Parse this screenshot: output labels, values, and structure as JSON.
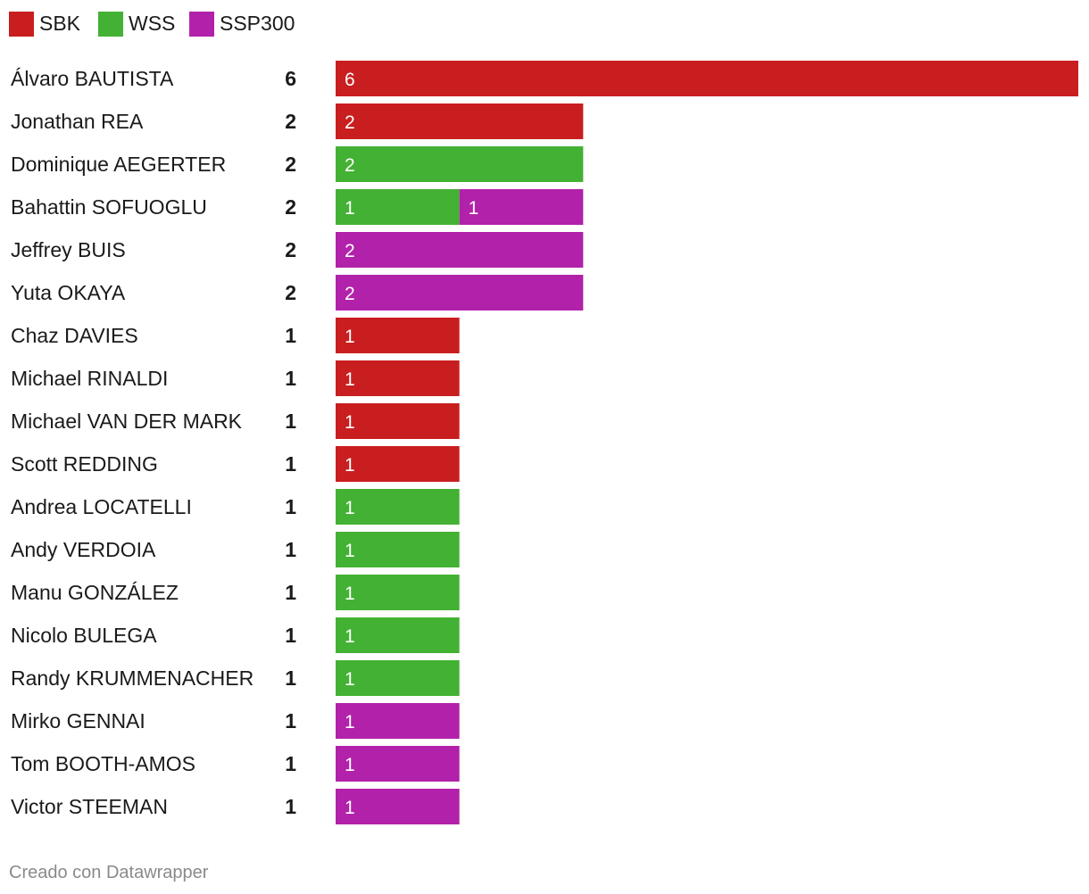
{
  "chart_data": {
    "type": "bar",
    "orientation": "horizontal",
    "stacked": true,
    "legend_position": "top-left",
    "grid": false,
    "series": [
      {
        "name": "SBK",
        "color": "#c91e1f"
      },
      {
        "name": "WSS",
        "color": "#43b133"
      },
      {
        "name": "SSP300",
        "color": "#b221a9"
      }
    ],
    "rows": [
      {
        "name": "Álvaro BAUTISTA",
        "total": 6,
        "values": [
          6,
          0,
          0
        ]
      },
      {
        "name": "Jonathan REA",
        "total": 2,
        "values": [
          2,
          0,
          0
        ]
      },
      {
        "name": "Dominique AEGERTER",
        "total": 2,
        "values": [
          0,
          2,
          0
        ]
      },
      {
        "name": "Bahattin SOFUOGLU",
        "total": 2,
        "values": [
          0,
          1,
          1
        ]
      },
      {
        "name": "Jeffrey BUIS",
        "total": 2,
        "values": [
          0,
          0,
          2
        ]
      },
      {
        "name": "Yuta OKAYA",
        "total": 2,
        "values": [
          0,
          0,
          2
        ]
      },
      {
        "name": "Chaz DAVIES",
        "total": 1,
        "values": [
          1,
          0,
          0
        ]
      },
      {
        "name": "Michael RINALDI",
        "total": 1,
        "values": [
          1,
          0,
          0
        ]
      },
      {
        "name": "Michael VAN DER MARK",
        "total": 1,
        "values": [
          1,
          0,
          0
        ]
      },
      {
        "name": "Scott REDDING",
        "total": 1,
        "values": [
          1,
          0,
          0
        ]
      },
      {
        "name": "Andrea LOCATELLI",
        "total": 1,
        "values": [
          0,
          1,
          0
        ]
      },
      {
        "name": "Andy VERDOIA",
        "total": 1,
        "values": [
          0,
          1,
          0
        ]
      },
      {
        "name": "Manu GONZÁLEZ",
        "total": 1,
        "values": [
          0,
          1,
          0
        ]
      },
      {
        "name": "Nicolo BULEGA",
        "total": 1,
        "values": [
          0,
          1,
          0
        ]
      },
      {
        "name": "Randy KRUMMENACHER",
        "total": 1,
        "values": [
          0,
          1,
          0
        ]
      },
      {
        "name": "Mirko GENNAI",
        "total": 1,
        "values": [
          0,
          0,
          1
        ]
      },
      {
        "name": "Tom BOOTH-AMOS",
        "total": 1,
        "values": [
          0,
          0,
          1
        ]
      },
      {
        "name": "Victor STEEMAN",
        "total": 1,
        "values": [
          0,
          0,
          1
        ]
      }
    ],
    "xlim": [
      0,
      6
    ]
  },
  "footer": "Creado con Datawrapper"
}
